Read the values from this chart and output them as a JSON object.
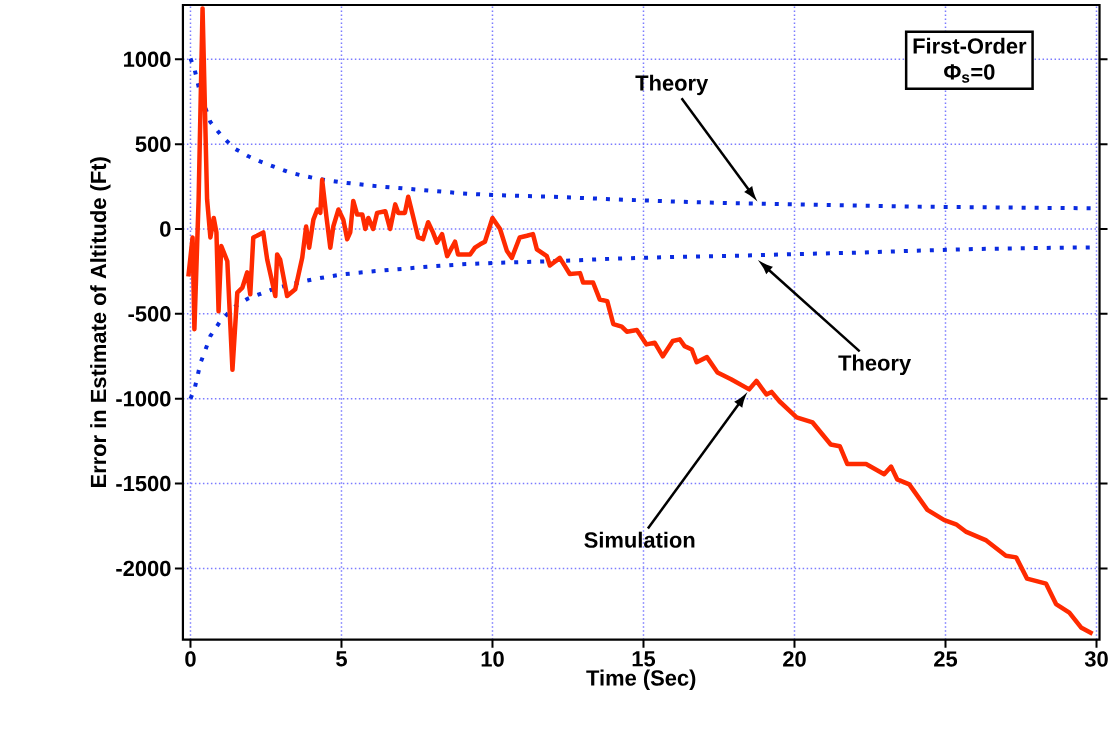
{
  "chart_data": {
    "type": "line",
    "xlabel": "Time (Sec)",
    "ylabel": "Error in Estimate of Altitude (Ft)",
    "xlim": [
      -0.25,
      30.1
    ],
    "ylim": [
      -2420,
      1320
    ],
    "xticks": [
      0,
      5,
      10,
      15,
      20,
      25,
      30
    ],
    "yticks": [
      -2000,
      -1500,
      -1000,
      -500,
      0,
      500,
      1000
    ],
    "grid": true,
    "series": [
      {
        "color": "#0a2be0",
        "line_style": "dotted",
        "x": [
          0,
          0.13,
          0.23,
          0.33,
          0.5,
          0.66,
          1,
          1.45,
          1.9,
          2.35,
          2.8,
          3.25,
          3.7,
          4.1,
          4.6,
          5,
          6,
          7,
          8,
          9,
          10,
          12,
          14,
          16,
          18,
          20,
          22,
          24,
          26,
          28,
          30
        ],
        "values": [
          1005,
          945,
          870,
          790,
          710,
          630,
          555,
          475,
          430,
          395,
          365,
          335,
          315,
          300,
          285,
          275,
          255,
          240,
          225,
          210,
          200,
          190,
          175,
          162,
          152,
          145,
          138,
          132,
          128,
          125,
          122
        ]
      },
      {
        "color": "#0a2be0",
        "line_style": "dotted",
        "x": [
          0,
          0.13,
          0.23,
          0.33,
          0.5,
          0.66,
          1,
          1.45,
          1.9,
          2.35,
          2.8,
          3.25,
          3.7,
          4.1,
          4.6,
          5,
          6,
          7,
          8,
          9,
          10,
          12,
          14,
          16,
          18,
          20,
          22,
          24,
          26,
          28,
          30
        ],
        "values": [
          -1000,
          -945,
          -870,
          -790,
          -710,
          -630,
          -540,
          -460,
          -410,
          -380,
          -350,
          -330,
          -310,
          -295,
          -280,
          -268,
          -250,
          -235,
          -220,
          -208,
          -200,
          -190,
          -175,
          -165,
          -158,
          -148,
          -140,
          -128,
          -118,
          -112,
          -108
        ]
      },
      {
        "color": "#ff2a00",
        "line_style": "solid",
        "x": [
          -0.07,
          0.07,
          0.13,
          0.27,
          0.4,
          0.55,
          0.66,
          0.77,
          0.86,
          0.93,
          1.02,
          1.22,
          1.39,
          1.55,
          1.72,
          1.88,
          1.98,
          2.08,
          2.2,
          2.41,
          2.54,
          2.81,
          2.87,
          2.97,
          3.2,
          3.47,
          3.7,
          3.83,
          3.93,
          4.07,
          4.2,
          4.3,
          4.36,
          4.5,
          4.63,
          4.73,
          4.9,
          5.06,
          5.19,
          5.29,
          5.39,
          5.52,
          5.69,
          5.79,
          5.89,
          6.05,
          6.18,
          6.45,
          6.61,
          6.78,
          6.88,
          7.1,
          7.21,
          7.37,
          7.54,
          7.7,
          7.87,
          8.03,
          8.16,
          8.33,
          8.5,
          8.76,
          8.86,
          9.26,
          9.42,
          9.59,
          9.75,
          10.0,
          10.25,
          10.48,
          10.64,
          10.9,
          11.14,
          11.34,
          11.47,
          11.8,
          11.9,
          12.23,
          12.56,
          12.9,
          13.0,
          13.33,
          13.55,
          13.8,
          14.0,
          14.28,
          14.45,
          14.78,
          15.1,
          15.37,
          15.64,
          15.97,
          16.2,
          16.36,
          16.6,
          16.76,
          17.1,
          17.45,
          17.9,
          18.5,
          18.74,
          19.07,
          19.24,
          19.5,
          20.07,
          20.6,
          21.2,
          21.5,
          21.75,
          22.37,
          22.97,
          23.2,
          23.4,
          23.8,
          24.4,
          24.96,
          25.35,
          25.69,
          26.35,
          27.0,
          27.34,
          27.7,
          28.33,
          28.66,
          29.1,
          29.5,
          29.87
        ],
        "values": [
          -280,
          -50,
          -590,
          175,
          1300,
          175,
          -50,
          65,
          -20,
          -485,
          -100,
          -190,
          -830,
          -375,
          -345,
          -255,
          -385,
          -50,
          -40,
          -20,
          -180,
          -395,
          -150,
          -180,
          -395,
          -355,
          -170,
          15,
          -110,
          55,
          115,
          95,
          290,
          75,
          -110,
          15,
          115,
          55,
          -60,
          -20,
          165,
          85,
          85,
          0,
          65,
          0,
          95,
          105,
          0,
          145,
          95,
          95,
          190,
          75,
          -50,
          -60,
          40,
          -20,
          -80,
          -30,
          -160,
          -75,
          -150,
          -150,
          -110,
          -90,
          -75,
          65,
          0,
          -130,
          -170,
          -50,
          -40,
          -30,
          -120,
          -160,
          -215,
          -170,
          -265,
          -260,
          -315,
          -315,
          -415,
          -425,
          -560,
          -575,
          -605,
          -595,
          -680,
          -670,
          -750,
          -660,
          -650,
          -690,
          -710,
          -785,
          -755,
          -845,
          -885,
          -945,
          -895,
          -975,
          -960,
          -1015,
          -1110,
          -1140,
          -1270,
          -1280,
          -1385,
          -1385,
          -1445,
          -1400,
          -1475,
          -1505,
          -1655,
          -1715,
          -1740,
          -1785,
          -1835,
          -1925,
          -1935,
          -2060,
          -2090,
          -2210,
          -2260,
          -2350,
          -2385
        ]
      }
    ],
    "annotations": [
      "First-Order",
      "Φ$_{s}$=0",
      "Theory",
      "Theory",
      "Simulation"
    ]
  }
}
